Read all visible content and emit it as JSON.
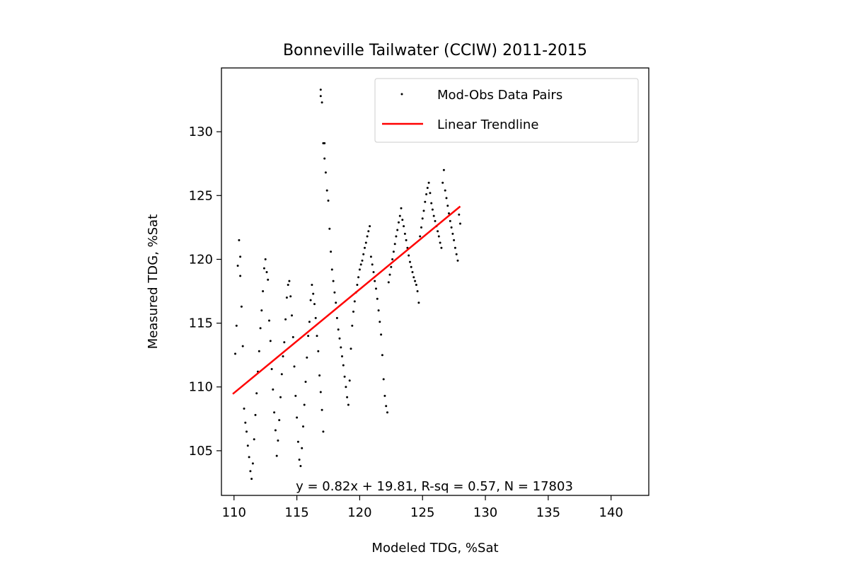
{
  "chart_data": {
    "type": "scatter",
    "title": "Bonneville Tailwater (CCIW) 2011-2015",
    "xlabel": "Modeled TDG, %Sat",
    "ylabel": "Measured TDG, %Sat",
    "xlim": [
      109,
      143
    ],
    "ylim": [
      101.5,
      135
    ],
    "xticks": [
      110,
      115,
      120,
      125,
      130,
      135,
      140
    ],
    "yticks": [
      105,
      110,
      115,
      120,
      125,
      130
    ],
    "grid": false,
    "legend": {
      "placement": "top-right",
      "entries": [
        "Mod-Obs Data Pairs",
        "Linear Trendline"
      ]
    },
    "annotation": "y = 0.82x + 19.81, R-sq = 0.57, N = 17803",
    "series": [
      {
        "name": "Mod-Obs Data Pairs",
        "kind": "scatter",
        "color": "#000000",
        "points": [
          [
            110.1,
            112.6
          ],
          [
            110.2,
            114.8
          ],
          [
            110.3,
            119.5
          ],
          [
            110.4,
            121.5
          ],
          [
            110.5,
            120.2
          ],
          [
            110.5,
            118.7
          ],
          [
            110.6,
            116.3
          ],
          [
            110.7,
            113.2
          ],
          [
            110.8,
            108.3
          ],
          [
            110.9,
            107.2
          ],
          [
            111.0,
            106.5
          ],
          [
            111.1,
            105.4
          ],
          [
            111.2,
            104.5
          ],
          [
            111.3,
            103.4
          ],
          [
            111.4,
            102.8
          ],
          [
            111.5,
            104.0
          ],
          [
            111.6,
            105.9
          ],
          [
            111.7,
            107.8
          ],
          [
            111.8,
            109.5
          ],
          [
            111.9,
            111.2
          ],
          [
            112.0,
            112.8
          ],
          [
            112.1,
            114.6
          ],
          [
            112.2,
            116.0
          ],
          [
            112.3,
            117.5
          ],
          [
            112.4,
            119.3
          ],
          [
            112.5,
            120.0
          ],
          [
            112.6,
            119.0
          ],
          [
            112.7,
            118.4
          ],
          [
            112.8,
            115.2
          ],
          [
            112.9,
            113.6
          ],
          [
            113.0,
            111.4
          ],
          [
            113.1,
            109.8
          ],
          [
            113.2,
            108.0
          ],
          [
            113.3,
            106.6
          ],
          [
            113.4,
            104.6
          ],
          [
            113.5,
            105.8
          ],
          [
            113.6,
            107.4
          ],
          [
            113.7,
            109.2
          ],
          [
            113.8,
            111.0
          ],
          [
            113.9,
            112.4
          ],
          [
            114.0,
            113.5
          ],
          [
            114.1,
            115.3
          ],
          [
            114.2,
            117.0
          ],
          [
            114.3,
            118.0
          ],
          [
            114.4,
            118.3
          ],
          [
            114.5,
            117.1
          ],
          [
            114.6,
            115.6
          ],
          [
            114.7,
            113.9
          ],
          [
            114.8,
            111.6
          ],
          [
            114.9,
            109.3
          ],
          [
            115.0,
            107.6
          ],
          [
            115.1,
            105.7
          ],
          [
            115.2,
            104.3
          ],
          [
            115.3,
            103.8
          ],
          [
            115.4,
            105.2
          ],
          [
            115.5,
            106.9
          ],
          [
            115.6,
            108.6
          ],
          [
            115.7,
            110.4
          ],
          [
            115.8,
            112.3
          ],
          [
            115.9,
            114.0
          ],
          [
            116.0,
            115.1
          ],
          [
            116.1,
            116.8
          ],
          [
            116.2,
            118.0
          ],
          [
            116.3,
            117.3
          ],
          [
            116.4,
            116.5
          ],
          [
            116.5,
            115.4
          ],
          [
            116.6,
            114.0
          ],
          [
            116.7,
            112.8
          ],
          [
            116.8,
            110.9
          ],
          [
            116.9,
            109.6
          ],
          [
            117.0,
            108.2
          ],
          [
            117.1,
            106.5
          ],
          [
            116.9,
            133.3
          ],
          [
            116.9,
            132.8
          ],
          [
            117.0,
            132.3
          ],
          [
            117.1,
            129.1
          ],
          [
            117.2,
            129.1
          ],
          [
            117.2,
            127.9
          ],
          [
            117.3,
            126.8
          ],
          [
            117.4,
            125.4
          ],
          [
            117.5,
            124.6
          ],
          [
            117.6,
            122.4
          ],
          [
            117.7,
            120.6
          ],
          [
            117.8,
            119.2
          ],
          [
            117.9,
            118.3
          ],
          [
            118.0,
            117.4
          ],
          [
            118.1,
            116.6
          ],
          [
            118.2,
            115.4
          ],
          [
            118.3,
            114.5
          ],
          [
            118.4,
            113.8
          ],
          [
            118.5,
            113.1
          ],
          [
            118.6,
            112.4
          ],
          [
            118.7,
            111.7
          ],
          [
            118.8,
            110.8
          ],
          [
            118.9,
            110.0
          ],
          [
            119.0,
            109.2
          ],
          [
            119.1,
            108.6
          ],
          [
            119.2,
            110.5
          ],
          [
            119.3,
            113.0
          ],
          [
            119.4,
            114.8
          ],
          [
            119.5,
            115.9
          ],
          [
            119.6,
            116.7
          ],
          [
            119.7,
            117.4
          ],
          [
            119.8,
            118.0
          ],
          [
            119.9,
            118.6
          ],
          [
            120.0,
            119.2
          ],
          [
            120.1,
            119.6
          ],
          [
            120.2,
            119.9
          ],
          [
            120.3,
            120.4
          ],
          [
            120.4,
            120.9
          ],
          [
            120.5,
            121.3
          ],
          [
            120.6,
            121.8
          ],
          [
            120.7,
            122.2
          ],
          [
            120.8,
            122.6
          ],
          [
            120.9,
            120.2
          ],
          [
            121.0,
            119.6
          ],
          [
            121.1,
            119.0
          ],
          [
            121.2,
            118.3
          ],
          [
            121.3,
            117.7
          ],
          [
            121.4,
            116.9
          ],
          [
            121.5,
            116.0
          ],
          [
            121.6,
            115.1
          ],
          [
            121.7,
            114.1
          ],
          [
            121.8,
            112.5
          ],
          [
            121.9,
            110.6
          ],
          [
            122.0,
            109.3
          ],
          [
            122.1,
            108.5
          ],
          [
            122.2,
            108.0
          ],
          [
            122.3,
            118.2
          ],
          [
            122.4,
            118.8
          ],
          [
            122.5,
            119.4
          ],
          [
            122.6,
            120.0
          ],
          [
            122.7,
            120.6
          ],
          [
            122.8,
            121.2
          ],
          [
            122.9,
            121.8
          ],
          [
            123.0,
            122.3
          ],
          [
            123.1,
            122.9
          ],
          [
            123.2,
            123.4
          ],
          [
            123.3,
            124.0
          ],
          [
            123.4,
            123.1
          ],
          [
            123.5,
            122.6
          ],
          [
            123.6,
            122.0
          ],
          [
            123.7,
            121.5
          ],
          [
            123.8,
            120.9
          ],
          [
            123.9,
            120.3
          ],
          [
            124.0,
            119.8
          ],
          [
            124.1,
            119.4
          ],
          [
            124.2,
            119.0
          ],
          [
            124.3,
            118.6
          ],
          [
            124.4,
            118.3
          ],
          [
            124.5,
            118.0
          ],
          [
            124.6,
            117.5
          ],
          [
            124.7,
            116.6
          ],
          [
            124.8,
            121.8
          ],
          [
            124.9,
            122.5
          ],
          [
            125.0,
            123.2
          ],
          [
            125.1,
            123.8
          ],
          [
            125.2,
            124.5
          ],
          [
            125.3,
            125.1
          ],
          [
            125.4,
            125.6
          ],
          [
            125.5,
            126.0
          ],
          [
            125.6,
            125.2
          ],
          [
            125.7,
            124.4
          ],
          [
            125.8,
            123.9
          ],
          [
            125.9,
            123.4
          ],
          [
            126.0,
            123.0
          ],
          [
            126.1,
            122.6
          ],
          [
            126.2,
            122.2
          ],
          [
            126.3,
            121.8
          ],
          [
            126.4,
            121.3
          ],
          [
            126.5,
            120.9
          ],
          [
            126.6,
            126.0
          ],
          [
            126.7,
            127.0
          ],
          [
            126.8,
            125.4
          ],
          [
            126.9,
            124.8
          ],
          [
            127.0,
            124.2
          ],
          [
            127.1,
            123.6
          ],
          [
            127.2,
            123.0
          ],
          [
            127.3,
            122.5
          ],
          [
            127.4,
            122.0
          ],
          [
            127.5,
            121.5
          ],
          [
            127.6,
            120.9
          ],
          [
            127.7,
            120.4
          ],
          [
            127.8,
            119.9
          ],
          [
            127.9,
            123.5
          ],
          [
            128.0,
            122.8
          ]
        ]
      },
      {
        "name": "Linear Trendline",
        "kind": "line",
        "color": "#ff0000",
        "x": [
          109.9,
          128.0
        ],
        "y": [
          109.45,
          124.15
        ]
      }
    ]
  }
}
